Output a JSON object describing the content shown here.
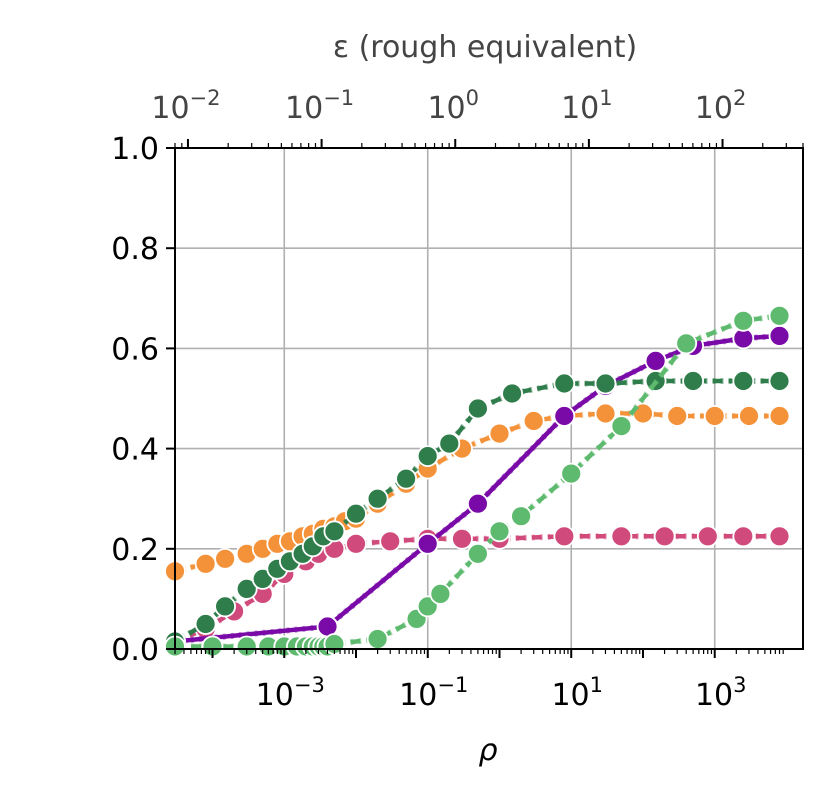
{
  "chart_data": {
    "type": "line",
    "x_scale": "log",
    "x_axis": {
      "label": "ρ",
      "ticks": [
        {
          "value": 0.001,
          "base": "10",
          "exp": "−3"
        },
        {
          "value": 0.1,
          "base": "10",
          "exp": "−1"
        },
        {
          "value": 10,
          "base": "10",
          "exp": "1"
        },
        {
          "value": 1000,
          "base": "10",
          "exp": "3"
        }
      ],
      "range": [
        3e-05,
        17000
      ]
    },
    "top_axis": {
      "label": "ε (rough equivalent)",
      "ticks": [
        {
          "value": 0.01,
          "base": "10",
          "exp": "−2"
        },
        {
          "value": 0.1,
          "base": "10",
          "exp": "−1"
        },
        {
          "value": 1,
          "base": "10",
          "exp": "0"
        },
        {
          "value": 10,
          "base": "10",
          "exp": "1"
        },
        {
          "value": 100,
          "base": "10",
          "exp": "2"
        }
      ],
      "range": [
        0.008,
        400
      ]
    },
    "y_axis": {
      "label": "",
      "ticks": [
        "0.0",
        "0.2",
        "0.4",
        "0.6",
        "0.8",
        "1.0"
      ],
      "range": [
        0.0,
        1.0
      ]
    },
    "grid": true,
    "series": [
      {
        "color": "#f4923a",
        "dash": "10,6",
        "point_color": "#f4923a",
        "x": [
          3e-05,
          8e-05,
          0.00015,
          0.0003,
          0.0005,
          0.0008,
          0.0012,
          0.0018,
          0.0025,
          0.0035,
          0.005,
          0.007,
          0.01,
          0.02,
          0.05,
          0.1,
          0.3,
          1,
          3,
          8,
          30,
          100,
          300,
          1000,
          3000,
          8000
        ],
        "y": [
          0.155,
          0.17,
          0.18,
          0.19,
          0.2,
          0.21,
          0.215,
          0.225,
          0.23,
          0.24,
          0.245,
          0.255,
          0.26,
          0.29,
          0.33,
          0.36,
          0.4,
          0.43,
          0.455,
          0.465,
          0.47,
          0.47,
          0.465,
          0.465,
          0.465,
          0.465
        ]
      },
      {
        "color": "#d04a7b",
        "dash": "10,6",
        "point_color": "#d04a7b",
        "x": [
          3e-05,
          8e-05,
          0.0002,
          0.0005,
          0.001,
          0.002,
          0.003,
          0.005,
          0.01,
          0.03,
          0.1,
          0.3,
          1,
          8,
          50,
          200,
          800,
          2500,
          8000
        ],
        "y": [
          0.015,
          0.04,
          0.075,
          0.11,
          0.15,
          0.175,
          0.19,
          0.2,
          0.21,
          0.215,
          0.22,
          0.22,
          0.22,
          0.225,
          0.225,
          0.225,
          0.225,
          0.225,
          0.225
        ]
      },
      {
        "color": "#7a0aa8",
        "dash": "0",
        "point_color": "#7a0aa8",
        "x": [
          3e-05,
          0.004,
          0.1,
          0.5,
          8,
          30,
          150,
          500,
          2500,
          8000
        ],
        "y": [
          0.015,
          0.045,
          0.21,
          0.29,
          0.465,
          0.525,
          0.575,
          0.605,
          0.62,
          0.625
        ]
      },
      {
        "color": "#2e7d4a",
        "dash": "10,6",
        "point_color": "#2e7d4a",
        "x": [
          3e-05,
          8e-05,
          0.00015,
          0.0003,
          0.0005,
          0.0008,
          0.0012,
          0.0018,
          0.0025,
          0.0035,
          0.005,
          0.01,
          0.02,
          0.05,
          0.1,
          0.2,
          0.5,
          1.5,
          8,
          30,
          150,
          500,
          2500,
          8000
        ],
        "y": [
          0.015,
          0.05,
          0.085,
          0.12,
          0.14,
          0.16,
          0.175,
          0.19,
          0.205,
          0.225,
          0.235,
          0.27,
          0.3,
          0.34,
          0.385,
          0.41,
          0.48,
          0.51,
          0.53,
          0.53,
          0.535,
          0.535,
          0.535,
          0.535
        ]
      },
      {
        "color": "#5dba6e",
        "dash": "10,6",
        "point_color": "#5dba6e",
        "x": [
          3e-05,
          0.0001,
          0.0003,
          0.0006,
          0.001,
          0.0015,
          0.002,
          0.0025,
          0.003,
          0.0035,
          0.004,
          0.005,
          0.02,
          0.07,
          0.1,
          0.15,
          0.5,
          1,
          2,
          10,
          50,
          400,
          2500,
          8000
        ],
        "y": [
          0.005,
          0.005,
          0.005,
          0.005,
          0.005,
          0.005,
          0.005,
          0.005,
          0.005,
          0.005,
          0.005,
          0.01,
          0.02,
          0.06,
          0.085,
          0.11,
          0.19,
          0.235,
          0.265,
          0.35,
          0.445,
          0.61,
          0.655,
          0.665
        ]
      }
    ]
  }
}
